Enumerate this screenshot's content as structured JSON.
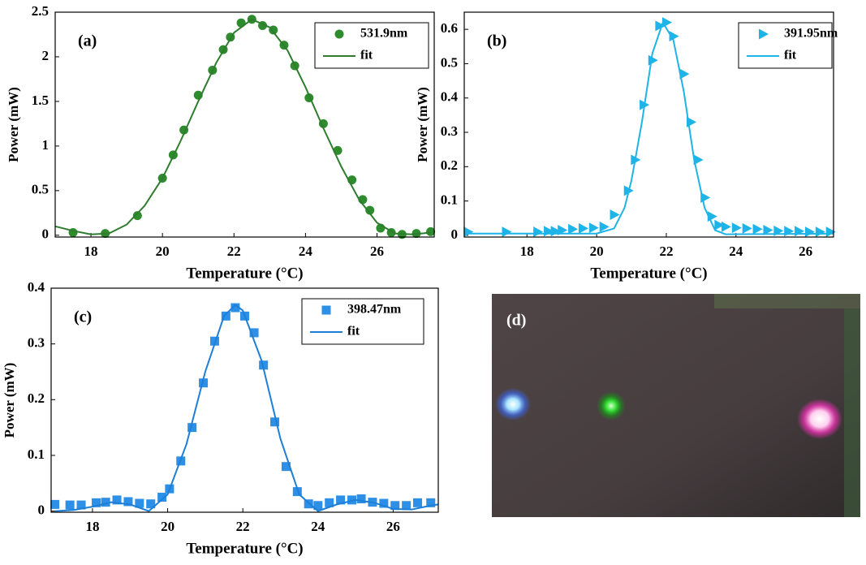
{
  "chart_data": [
    {
      "type": "scatter",
      "label": "(a)",
      "xlabel": "Temperature (°C)",
      "ylabel": "Power (mW)",
      "xlim": [
        17,
        27.6
      ],
      "ylim": [
        -0.02,
        2.5
      ],
      "xticks": [
        18,
        20,
        22,
        24,
        26
      ],
      "yticks": [
        0,
        0.5,
        1,
        1.5,
        2,
        2.5
      ],
      "series": [
        {
          "name": "531.9nm",
          "color": "#2e8b2e",
          "marker": "circle",
          "x": [
            17.5,
            18.4,
            19.3,
            20,
            20.3,
            20.6,
            21,
            21.4,
            21.7,
            21.9,
            22.2,
            22.5,
            22.8,
            23.1,
            23.4,
            23.7,
            24.1,
            24.5,
            24.9,
            25.3,
            25.6,
            25.8,
            26.1,
            26.4,
            26.7,
            27.1,
            27.5
          ],
          "values": [
            0.03,
            0.02,
            0.22,
            0.64,
            0.9,
            1.18,
            1.57,
            1.85,
            2.08,
            2.22,
            2.38,
            2.42,
            2.35,
            2.3,
            2.13,
            1.9,
            1.54,
            1.25,
            0.95,
            0.62,
            0.4,
            0.28,
            0.08,
            0.03,
            0.01,
            0.02,
            0.04
          ]
        },
        {
          "name": "fit",
          "color": "#2e7d2e",
          "marker": "line",
          "x": [
            17,
            17.5,
            18,
            18.5,
            19,
            19.5,
            20,
            20.5,
            21,
            21.5,
            22,
            22.5,
            23,
            23.5,
            24,
            24.5,
            25,
            25.5,
            26,
            26.5,
            27,
            27.5
          ],
          "values": [
            0.1,
            0.05,
            0.01,
            0.02,
            0.12,
            0.33,
            0.64,
            1.05,
            1.5,
            1.93,
            2.27,
            2.42,
            2.33,
            2.07,
            1.66,
            1.2,
            0.77,
            0.4,
            0.14,
            0.02,
            0.01,
            0.03
          ]
        }
      ]
    },
    {
      "type": "scatter",
      "label": "(b)",
      "xlabel": "Temperature (°C)",
      "ylabel": "Power (mW)",
      "xlim": [
        16.2,
        26.8
      ],
      "ylim": [
        -0.005,
        0.65
      ],
      "xticks": [
        18,
        20,
        22,
        24,
        26
      ],
      "yticks": [
        0,
        0.1,
        0.2,
        0.3,
        0.4,
        0.5,
        0.6
      ],
      "series": [
        {
          "name": "391.95nm",
          "color": "#1eb4e8",
          "marker": "triangle",
          "x": [
            16.3,
            17.4,
            18.3,
            18.6,
            18.8,
            19.0,
            19.3,
            19.6,
            19.9,
            20.2,
            20.5,
            20.9,
            21.1,
            21.35,
            21.6,
            21.8,
            22.0,
            22.2,
            22.5,
            22.7,
            22.9,
            23.1,
            23.3,
            23.5,
            23.7,
            24.0,
            24.3,
            24.6,
            24.9,
            25.2,
            25.5,
            25.8,
            26.1,
            26.4,
            26.7
          ],
          "values": [
            0.01,
            0.01,
            0.01,
            0.012,
            0.012,
            0.015,
            0.018,
            0.02,
            0.022,
            0.025,
            0.06,
            0.13,
            0.22,
            0.38,
            0.51,
            0.61,
            0.62,
            0.58,
            0.47,
            0.33,
            0.22,
            0.11,
            0.055,
            0.03,
            0.025,
            0.022,
            0.02,
            0.018,
            0.015,
            0.013,
            0.012,
            0.012,
            0.01,
            0.01,
            0.01
          ]
        },
        {
          "name": "fit",
          "color": "#1eb4e8",
          "marker": "line",
          "x": [
            16.2,
            20,
            20.5,
            20.8,
            21,
            21.3,
            21.6,
            21.9,
            22.2,
            22.5,
            22.8,
            23.1,
            23.4,
            23.7,
            26.8
          ],
          "values": [
            0.005,
            0.005,
            0.02,
            0.08,
            0.16,
            0.33,
            0.53,
            0.62,
            0.57,
            0.42,
            0.22,
            0.08,
            0.015,
            0.003,
            0.005
          ]
        }
      ]
    },
    {
      "type": "scatter",
      "label": "(c)",
      "xlabel": "Temperature (°C)",
      "ylabel": "Power (mW)",
      "xlim": [
        16.9,
        27.2
      ],
      "ylim": [
        -0.002,
        0.4
      ],
      "xticks": [
        18,
        20,
        22,
        24,
        26
      ],
      "yticks": [
        0,
        0.1,
        0.2,
        0.3,
        0.4
      ],
      "series": [
        {
          "name": "398.47nm",
          "color": "#2e8fe6",
          "marker": "square",
          "x": [
            17,
            17.4,
            17.7,
            18.1,
            18.35,
            18.65,
            18.95,
            19.25,
            19.55,
            19.85,
            20.05,
            20.35,
            20.65,
            20.95,
            21.25,
            21.55,
            21.8,
            22.05,
            22.3,
            22.55,
            22.85,
            23.15,
            23.45,
            23.75,
            24.0,
            24.3,
            24.6,
            24.9,
            25.15,
            25.45,
            25.75,
            26.05,
            26.35,
            26.65,
            27.0
          ],
          "values": [
            0.012,
            0.011,
            0.011,
            0.015,
            0.016,
            0.02,
            0.017,
            0.014,
            0.013,
            0.025,
            0.04,
            0.09,
            0.15,
            0.23,
            0.305,
            0.35,
            0.365,
            0.35,
            0.32,
            0.262,
            0.16,
            0.08,
            0.035,
            0.013,
            0.01,
            0.015,
            0.02,
            0.02,
            0.022,
            0.016,
            0.014,
            0.01,
            0.01,
            0.015,
            0.015
          ]
        },
        {
          "name": "fit",
          "color": "#1e7fd6",
          "marker": "line",
          "x": [
            17,
            17.5,
            18,
            18.5,
            19,
            19.5,
            20,
            20.5,
            21,
            21.5,
            21.8,
            22,
            22.5,
            23,
            23.5,
            24,
            24.5,
            25,
            25.5,
            26,
            26.5,
            27,
            27.2
          ],
          "values": [
            0.0,
            0.002,
            0.008,
            0.016,
            0.012,
            0.0,
            0.03,
            0.12,
            0.25,
            0.35,
            0.37,
            0.36,
            0.27,
            0.13,
            0.03,
            0.0,
            0.012,
            0.02,
            0.015,
            0.004,
            0.003,
            0.01,
            0.012
          ]
        }
      ]
    }
  ],
  "photo": {
    "label": "(d)"
  }
}
